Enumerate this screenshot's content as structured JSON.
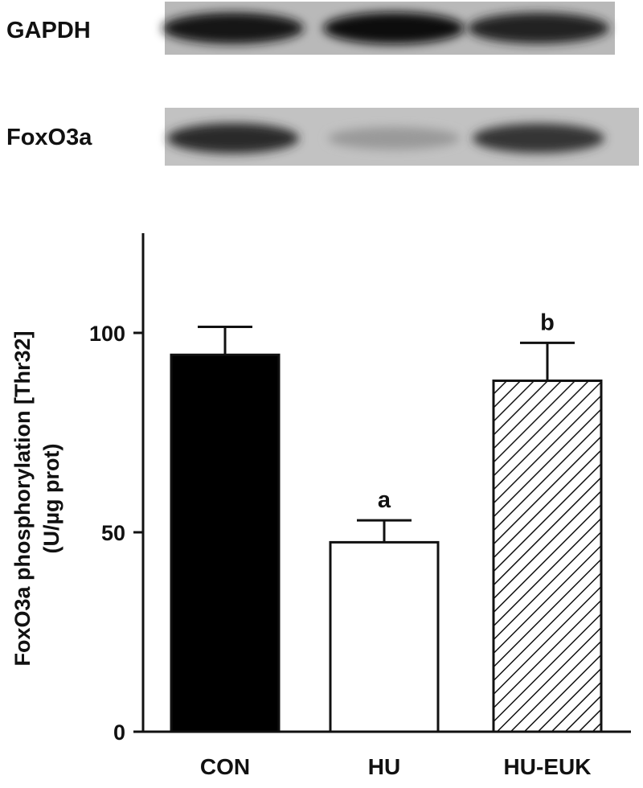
{
  "blots": [
    {
      "label": "GAPDH",
      "lanes": [
        0.95,
        1.0,
        0.9
      ]
    },
    {
      "label": "FoxO3a",
      "lanes": [
        0.85,
        0.25,
        0.8
      ]
    }
  ],
  "chart_data": {
    "type": "bar",
    "categories": [
      "CON",
      "HU",
      "HU-EUK"
    ],
    "values": [
      94.5,
      47.5,
      88
    ],
    "errors": [
      7,
      5.5,
      9.5
    ],
    "significance": [
      "",
      "a",
      "b"
    ],
    "fills": [
      "solid-black",
      "white",
      "diagonal-hatch"
    ],
    "ylabel": "FoxO3a phosphorylation [Thr32]",
    "ylabel2": "(U/µg prot)",
    "ylim": [
      0,
      125
    ],
    "yticks": [
      0,
      50,
      100
    ],
    "grid": false,
    "legend": "none"
  }
}
